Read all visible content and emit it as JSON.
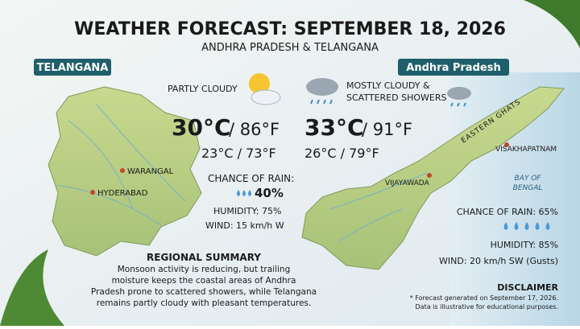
{
  "header": {
    "title": "WEATHER FORECAST: SEPTEMBER 18, 2026",
    "subtitle": "ANDHRA PRADESH & TELANGANA"
  },
  "telangana": {
    "label": "TELANGANA",
    "condition": "PARTLY CLOUDY",
    "high_c": "30°C",
    "high_f": "/ 86°F",
    "low": "23°C / 73°F",
    "rain_label": "CHANCE OF RAIN:",
    "rain_value": "40%",
    "humidity": "HUMIDITY: 75%",
    "wind": "WIND: 15 km/h W",
    "cities": [
      "WARANGAL",
      "HYDERABAD"
    ]
  },
  "andhra_pradesh": {
    "label": "Andhra Pradesh",
    "condition": [
      "MOSTLY CLOUDY &",
      "SCATTERED SHOWERS"
    ],
    "high_c": "33°C",
    "high_f": "/ 91°F",
    "low": "26°C / 79°F",
    "rain": "CHANCE OF RAIN: 65%",
    "humidity": "HUMIDITY: 85%",
    "wind": "WIND: 20 km/h SW (Gusts)",
    "cities": [
      "VISAKHAPATNAM",
      "VIJAYAWADA"
    ],
    "range": "EASTERN GHATS",
    "sea": [
      "BAY OF",
      "BENGAL"
    ]
  },
  "summary": {
    "title": "REGIONAL SUMMARY",
    "lines": [
      "Monsoon activity is reducing, but trailing",
      "moisture keeps the coastal areas of Andhra",
      "Pradesh prone to scattered showers, while Telangana",
      "remains partly cloudy with pleasant temperatures."
    ]
  },
  "disclaimer": {
    "title": "DISCLAIMER",
    "lines": [
      "* Forecast generated on September 17, 2026.",
      "Data is illustrative for educational purposes."
    ]
  }
}
